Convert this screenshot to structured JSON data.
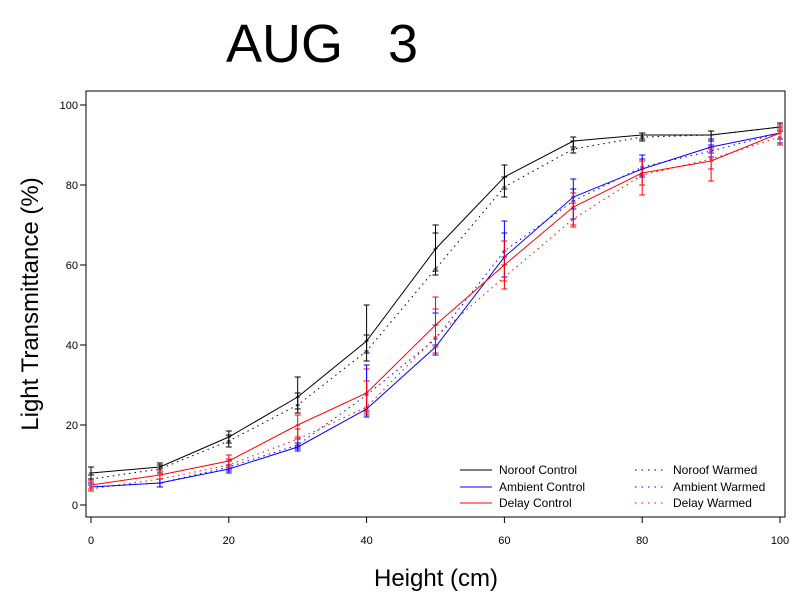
{
  "chart_data": {
    "type": "line",
    "title": "AUG   3",
    "xlabel": "Height (cm)",
    "ylabel": "Light Transmittance (%)",
    "xlim": [
      0,
      100
    ],
    "ylim": [
      0,
      100
    ],
    "xticks": [
      0,
      20,
      40,
      60,
      80,
      100
    ],
    "yticks": [
      0,
      20,
      40,
      60,
      80,
      100
    ],
    "grid": false,
    "legend_position": "bottom-right",
    "x": [
      0,
      10,
      20,
      30,
      40,
      50,
      60,
      70,
      80,
      90,
      100
    ],
    "series": [
      {
        "name": "Noroof Control",
        "color": "#000000",
        "style": "solid",
        "values": [
          8,
          9.5,
          17,
          27,
          41,
          64,
          82,
          91,
          92.5,
          92.5,
          94.5
        ],
        "err_low": [
          6.5,
          8.5,
          15.5,
          24,
          38,
          58.5,
          79,
          89.5,
          91.5,
          91.5,
          93.5
        ],
        "err_high": [
          9.5,
          10.5,
          18.5,
          32,
          50,
          70,
          85,
          92,
          93,
          93.5,
          95
        ]
      },
      {
        "name": "Ambient Control",
        "color": "#0000ff",
        "style": "solid",
        "values": [
          4.5,
          5.5,
          9,
          14.5,
          24,
          39.5,
          62,
          77,
          84,
          89.5,
          93
        ],
        "err_low": [
          4,
          4.5,
          8,
          13.5,
          22,
          37.5,
          57,
          71.5,
          82,
          88,
          90.5
        ],
        "err_high": [
          5,
          6.5,
          10,
          15.5,
          35,
          45,
          71,
          81.5,
          87.5,
          91.5,
          94.5
        ]
      },
      {
        "name": "Delay Control",
        "color": "#ff0000",
        "style": "solid",
        "values": [
          5,
          7.5,
          11,
          20,
          28,
          45,
          60,
          74.5,
          83,
          86,
          93
        ],
        "err_low": [
          4,
          6.5,
          9.5,
          17,
          23,
          39.5,
          56,
          70,
          80,
          84,
          90
        ],
        "err_high": [
          6,
          8.5,
          12.5,
          22.5,
          31,
          52,
          66,
          78,
          86,
          89,
          95
        ]
      },
      {
        "name": "Noroof Warmed",
        "color": "#000000",
        "style": "dotted",
        "values": [
          6.5,
          9,
          16,
          25,
          38.5,
          59,
          79.5,
          89,
          92,
          92.5,
          94.5
        ],
        "err_low": [
          5.5,
          8,
          14.5,
          23,
          36,
          57.5,
          77,
          88,
          91,
          91,
          93.5
        ],
        "err_high": [
          7.5,
          10,
          17.5,
          28,
          42.5,
          68,
          82,
          91,
          93,
          93.5,
          95.5
        ]
      },
      {
        "name": "Ambient Warmed",
        "color": "#0000ff",
        "style": "dotted",
        "values": [
          4.5,
          5.5,
          9.5,
          15,
          27.5,
          41.5,
          63.5,
          76,
          84.5,
          88.5,
          93
        ],
        "err_low": [
          4,
          4.5,
          8.5,
          14,
          23.5,
          40,
          60,
          74,
          82.5,
          87,
          91.5
        ],
        "err_high": [
          5.5,
          6.5,
          11,
          16.5,
          31,
          48,
          68,
          79,
          86.5,
          90,
          94.5
        ]
      },
      {
        "name": "Delay Warmed",
        "color": "#ff0000",
        "style": "dotted",
        "values": [
          4,
          6.5,
          10,
          16.5,
          24.5,
          42,
          57,
          71.5,
          82.5,
          86.5,
          92
        ],
        "err_low": [
          3.5,
          5.5,
          9,
          14.5,
          22.5,
          38,
          54,
          69.5,
          77.5,
          81,
          90
        ],
        "err_high": [
          5,
          7.5,
          11.5,
          19,
          34,
          49,
          62,
          75.5,
          86,
          89.5,
          94
        ]
      }
    ]
  }
}
